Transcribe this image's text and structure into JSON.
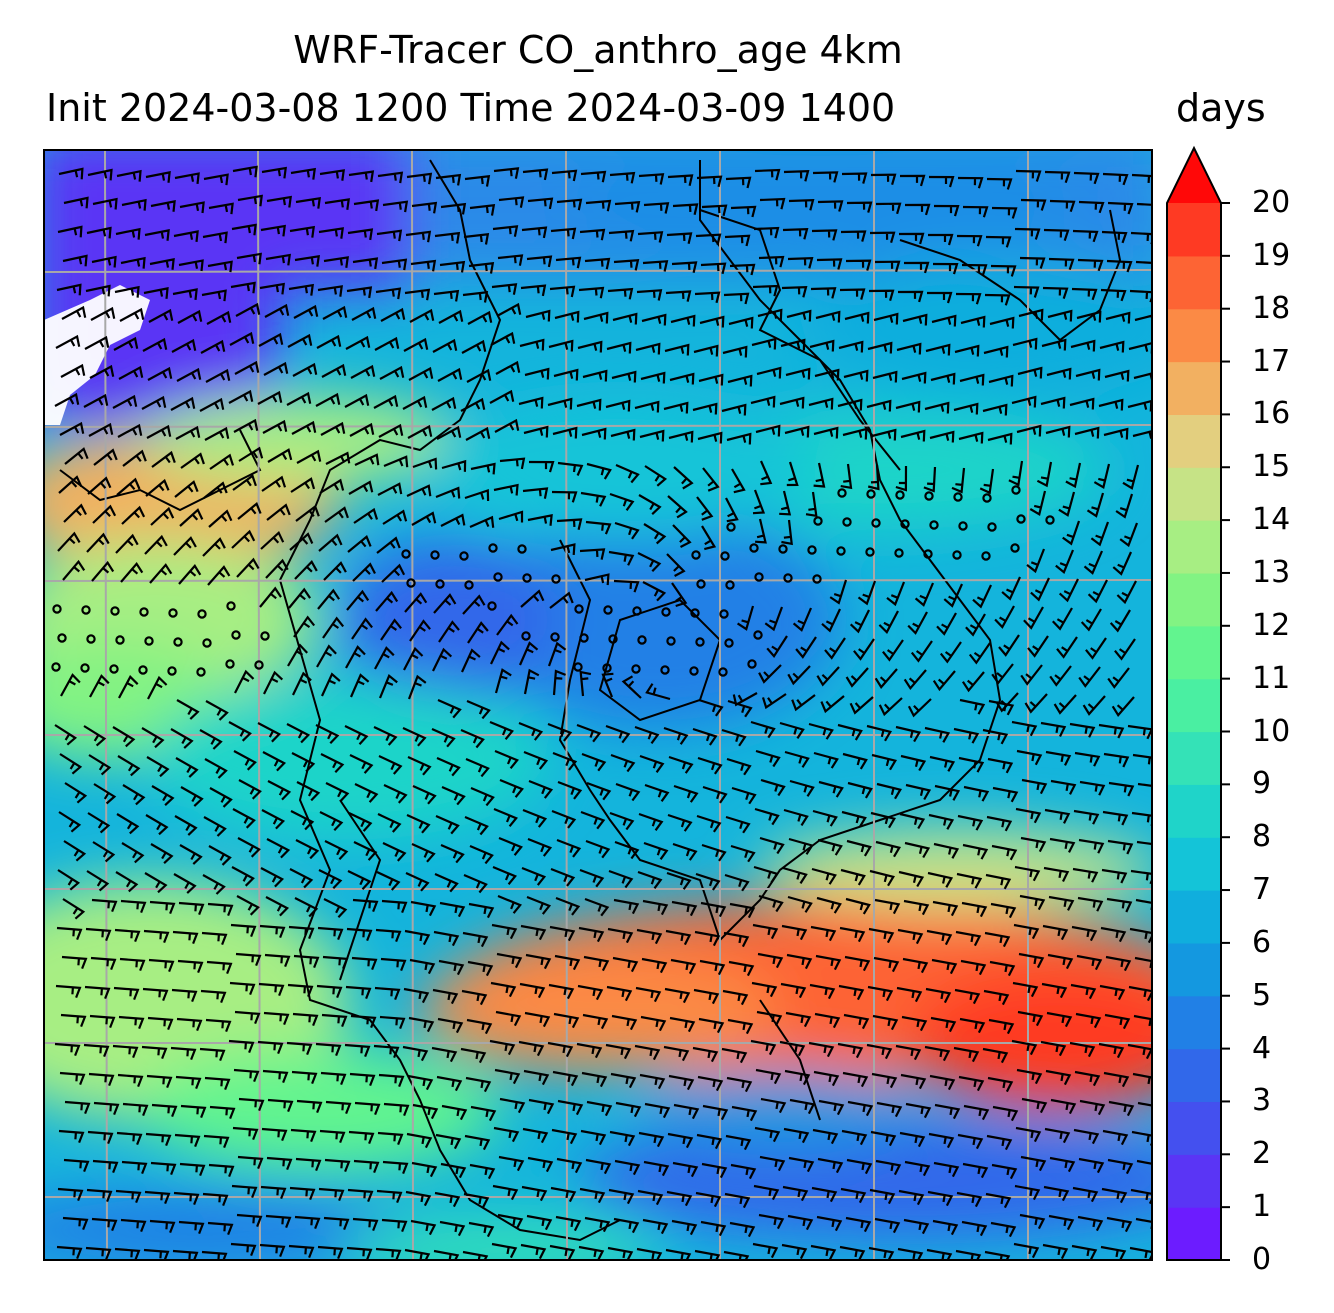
{
  "title": {
    "line1": "WRF-Tracer CO_anthro_age 4km",
    "line2": "Init 2024-03-08 1200 Time 2024-03-09 1400"
  },
  "colorbar": {
    "label": "days",
    "ticks": [
      "0",
      "1",
      "2",
      "3",
      "4",
      "5",
      "6",
      "7",
      "8",
      "9",
      "10",
      "11",
      "12",
      "13",
      "14",
      "15",
      "16",
      "17",
      "18",
      "19",
      "20"
    ],
    "extend": "max",
    "colors": [
      "#6c1cff",
      "#5a35f5",
      "#4450ef",
      "#3168ea",
      "#2180e6",
      "#1498e0",
      "#10aedd",
      "#14c4d8",
      "#1fd4c9",
      "#34e2b7",
      "#4aefa2",
      "#62f48f",
      "#82f383",
      "#a7ee83",
      "#c6e386",
      "#e3cf7f",
      "#f2b061",
      "#fb8a45",
      "#fd6434",
      "#fe3a23",
      "#ff1a12"
    ],
    "extend_color": "#ff0808"
  },
  "map": {
    "features": [
      "wind-barbs",
      "coastlines",
      "lat-lon-gridlines",
      "filled-contours"
    ]
  }
}
